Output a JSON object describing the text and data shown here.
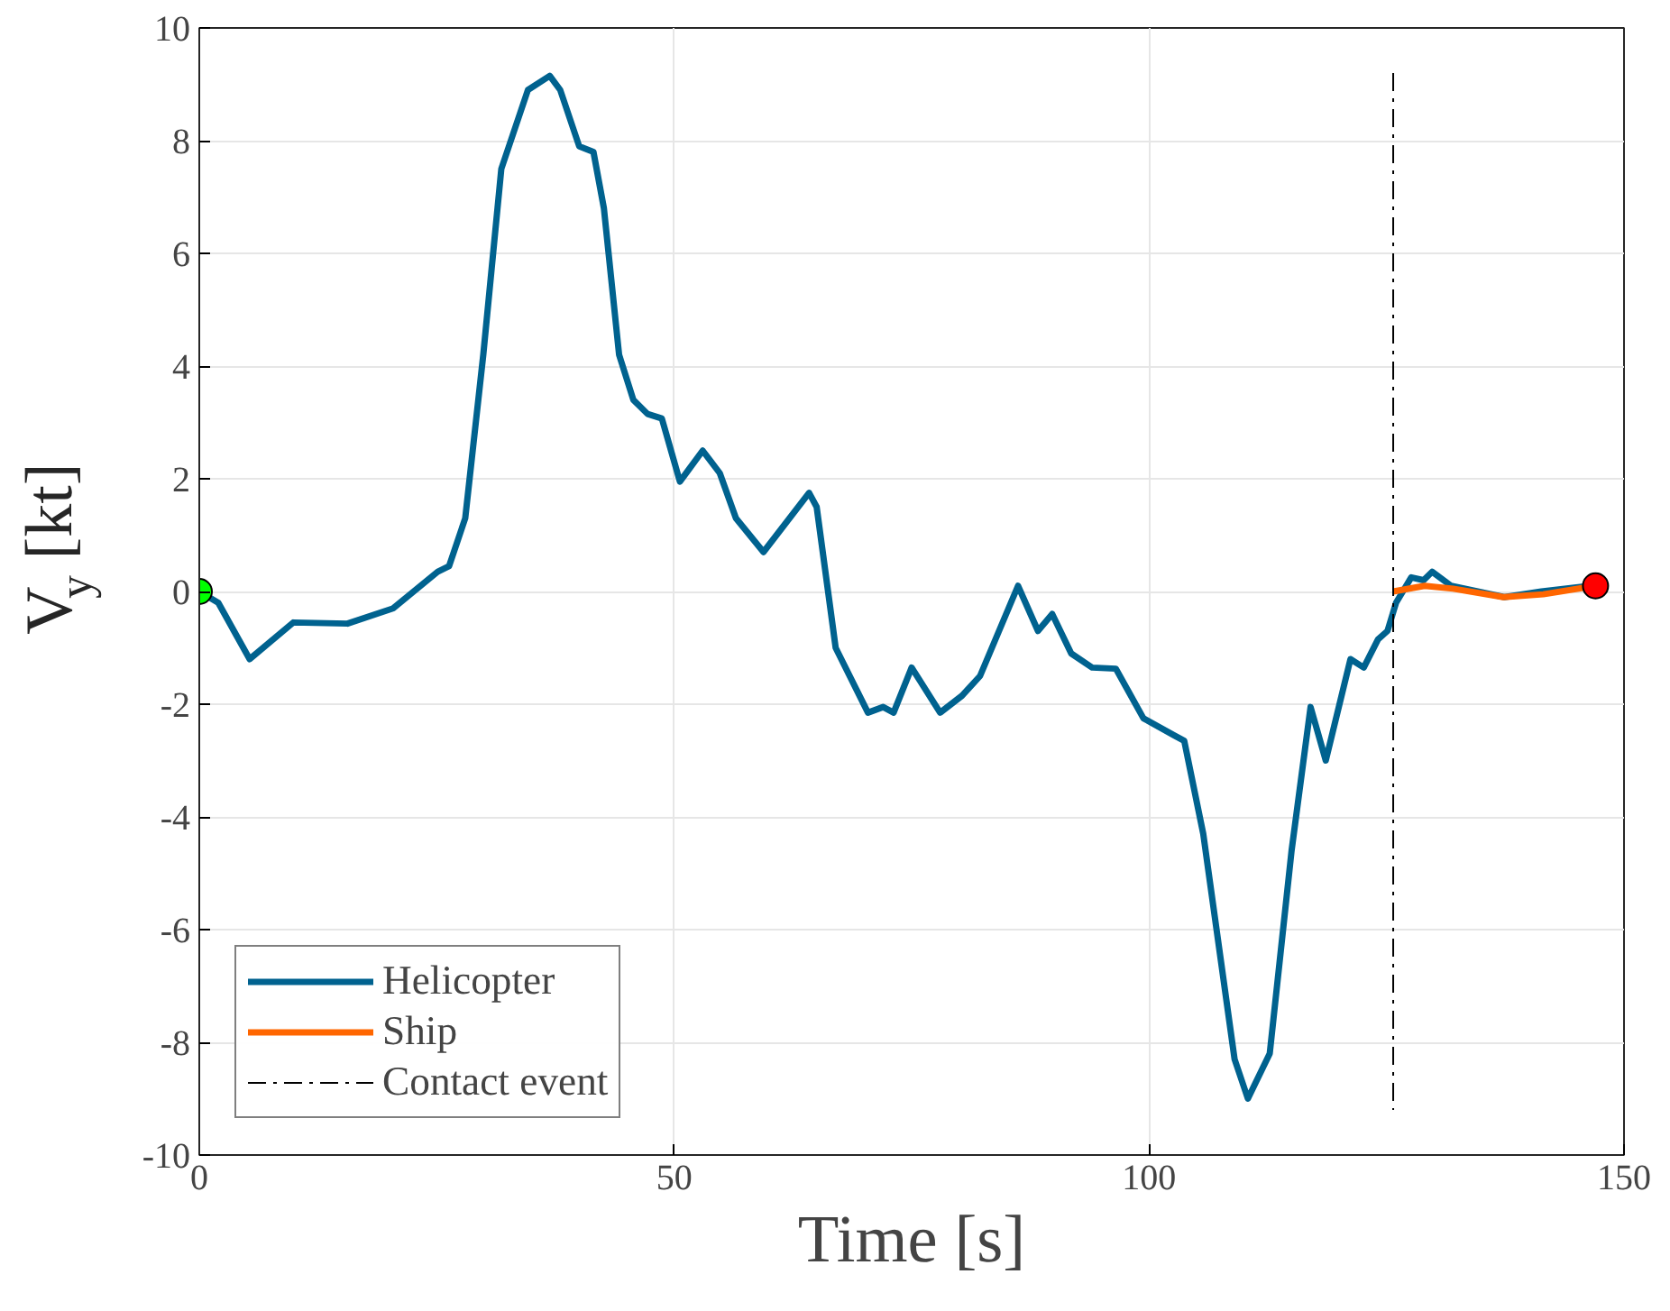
{
  "chart_data": {
    "type": "line",
    "xlabel": "Time [s]",
    "ylabel": "V$_{y}$ [kt]",
    "xlim": [
      0,
      150
    ],
    "ylim": [
      -10,
      10
    ],
    "xticks": [
      0,
      50,
      100,
      150
    ],
    "yticks": [
      -10,
      -8,
      -6,
      -4,
      -2,
      0,
      2,
      4,
      6,
      8,
      10
    ],
    "grid": true,
    "legend": "bottom left",
    "line_style": "solid",
    "series": [
      {
        "name": "Helicopter",
        "color": "#00628f",
        "x": [
          0,
          2,
          5.3,
          9.9,
          15.6,
          20.4,
          25.1,
          26.3,
          28,
          29.9,
          31.8,
          34.6,
          36.9,
          38,
          40,
          41.5,
          42.6,
          44.2,
          45.7,
          47.2,
          48.7,
          50.6,
          53,
          54.8,
          56.5,
          59.4,
          64.2,
          65,
          67,
          70.4,
          72,
          73.1,
          75,
          78,
          80.3,
          82.2,
          86.2,
          88.3,
          89.8,
          91.8,
          94,
          96.5,
          99.4,
          102.6,
          103.7,
          105.7,
          109,
          110.4,
          112.7,
          115,
          117,
          118.6,
          121.2,
          122.6,
          124.1,
          125.1,
          126,
          127.6,
          128.9,
          129.8,
          131.8,
          137.4,
          141.3,
          146.4
        ],
        "values": [
          0,
          -0.2,
          -1.2,
          -0.55,
          -0.57,
          -0.3,
          0.35,
          0.45,
          1.3,
          4.2,
          7.5,
          8.9,
          9.15,
          8.9,
          7.9,
          7.8,
          6.8,
          4.2,
          3.4,
          3.15,
          3.07,
          1.95,
          2.5,
          2.1,
          1.3,
          0.7,
          1.75,
          1.5,
          -1.0,
          -2.15,
          -2.05,
          -2.15,
          -1.35,
          -2.15,
          -1.85,
          -1.5,
          0.1,
          -0.7,
          -0.4,
          -1.1,
          -1.35,
          -1.37,
          -2.25,
          -2.55,
          -2.65,
          -4.3,
          -8.3,
          -9.0,
          -8.2,
          -4.6,
          -2.05,
          -3.0,
          -1.2,
          -1.35,
          -0.85,
          -0.7,
          -0.2,
          0.25,
          0.2,
          0.35,
          0.1,
          -0.1,
          0,
          0.1
        ]
      },
      {
        "name": "Ship",
        "color": "#ff6600",
        "x": [
          125.7,
          129,
          132,
          137.3,
          141.5,
          147
        ],
        "values": [
          0,
          0.1,
          0.05,
          -0.1,
          -0.05,
          0.1
        ]
      },
      {
        "name": "Contact event",
        "color": "#000000",
        "line_style": "dashdot",
        "x": [
          125.7,
          125.7
        ],
        "values": [
          9.2,
          -9.2
        ]
      },
      {
        "type": "scatter",
        "marker": "circle",
        "color": "#00ff00",
        "x": [
          0
        ],
        "values": [
          0
        ]
      },
      {
        "type": "scatter",
        "marker": "circle",
        "color": "#ff0000",
        "x": [
          147
        ],
        "values": [
          0.1
        ]
      }
    ]
  }
}
